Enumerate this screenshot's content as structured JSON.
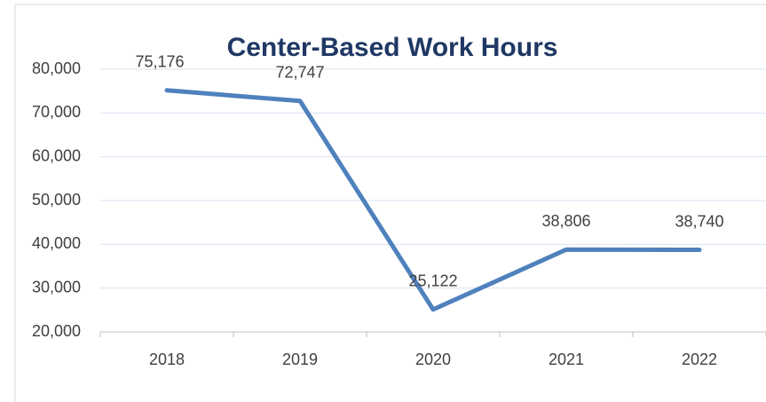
{
  "chart_data": {
    "type": "line",
    "title": "Center-Based Work Hours",
    "categories": [
      "2018",
      "2019",
      "2020",
      "2021",
      "2022"
    ],
    "series": [
      {
        "name": "Center-Based Work Hours",
        "color": "#4f81bd",
        "values": [
          75176,
          72747,
          25122,
          38806,
          38740
        ],
        "value_labels": [
          "75,176",
          "72,747",
          "25,122",
          "38,806",
          "38,740"
        ]
      }
    ],
    "ylim": [
      20000,
      80000
    ],
    "yticks": [
      {
        "value": 20000,
        "label": "20,000"
      },
      {
        "value": 30000,
        "label": "30,000"
      },
      {
        "value": 40000,
        "label": "40,000"
      },
      {
        "value": 50000,
        "label": "50,000"
      },
      {
        "value": 60000,
        "label": "60,000"
      },
      {
        "value": 70000,
        "label": "70,000"
      },
      {
        "value": 80000,
        "label": "80,000"
      }
    ],
    "grid": true
  }
}
